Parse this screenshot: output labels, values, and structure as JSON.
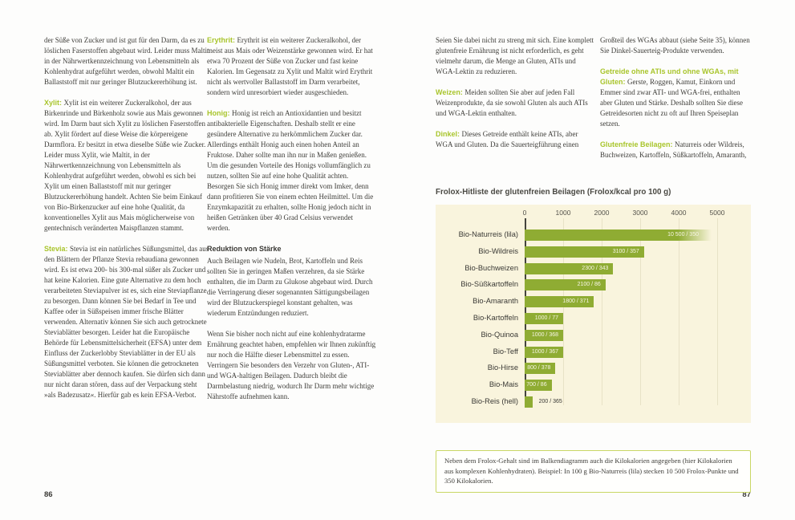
{
  "colors": {
    "accent_green": "#a9c52c",
    "bar_green": "#8fac33",
    "panel_background": "#f9f4dd",
    "note_border": "#c9d765",
    "body_text": "#3e3d39"
  },
  "left_page": {
    "number": "86",
    "col1": [
      {
        "lead": "",
        "text": "der Süße von Zucker und ist gut für den Darm, da es zu löslichen Faserstoffen abgebaut wird. Leider muss Maltit in der Nährwertkennzeichnung von Lebensmitteln als Kohlenhydrat aufgeführt werden, obwohl Maltit ein Ballaststoff mit nur geringer Blutzuckererhöhung ist."
      },
      {
        "lead": "Xylit:",
        "text": "Xylit ist ein weiterer Zuckeralkohol, der aus Birkenrinde und Birkenholz sowie aus Mais gewonnen wird. Im Darm baut sich Xylit zu löslichen Faserstoffen ab. Xylit fördert auf diese Weise die körpereigene Darmflora. Er besitzt in etwa dieselbe Süße wie Zucker. Leider muss Xylit, wie Maltit, in der Nährwertkennzeichnung von Lebensmitteln als Kohlenhydrat aufgeführt werden, obwohl es sich bei Xylit um einen Ballaststoff mit nur geringer Blutzuckererhöhung handelt. Achten Sie beim Einkauf von Bio-Birkenzucker auf eine hohe Qualität, da konventionelles Xylit aus Mais möglicherweise von gentechnisch veränderten Maispflanzen stammt."
      },
      {
        "lead": "Stevia:",
        "text": "Stevia ist ein natürliches Süßungsmittel, das aus den Blättern der Pflanze Stevia rebaudiana gewonnen wird. Es ist etwa 200- bis 300-mal süßer als Zucker und hat keine Kalorien. Eine gute Alternative zu dem hoch verarbeiteten Steviapulver ist es, sich eine Steviapflanze zu besorgen. Dann können Sie bei Bedarf in Tee und Kaffee oder in Süßspeisen immer frische Blätter verwenden. Alternativ können Sie sich auch getrocknete Steviablätter besorgen. Leider hat die Europäische Behörde für Lebensmittelsicherheit (EFSA) unter dem Einfluss der Zuckerlobby Steviablätter in der EU als Süßungsmittel verboten. Sie können die getrockneten Steviablätter aber dennoch kaufen. Sie dürfen sich dann nur nicht daran stören, dass auf der Verpackung steht »als Badezusatz«. Hierfür gab es kein EFSA-Verbot."
      }
    ],
    "col2": [
      {
        "lead": "Erythrit:",
        "text": "Erythrit ist ein weiterer Zuckeralkohol, der meist aus Mais oder Weizenstärke gewonnen wird. Er hat etwa 70 Prozent der Süße von Zucker und fast keine Kalorien. Im Gegensatz zu Xylit und Maltit wird Erythrit nicht als wertvoller Ballaststoff im Darm verarbeitet, sondern wird unresorbiert wieder ausgeschieden."
      },
      {
        "lead": "Honig:",
        "text": "Honig ist reich an Antioxidantien und besitzt antibakterielle Eigenschaften. Deshalb stellt er eine gesündere Alternative zu herkömmlichem Zucker dar. Allerdings enthält Honig auch einen hohen Anteil an Fruktose. Daher sollte man ihn nur in Maßen genießen. Um die gesunden Vorteile des Honigs vollumfänglich zu nutzen, sollten Sie auf eine hohe Qualität achten. Besorgen Sie sich Honig immer direkt vom Imker, denn dann profitieren Sie von einem echten Heilmittel. Um die Enzymkapazität zu erhalten, sollte Honig jedoch nicht in heißen Getränken über 40 Grad Celsius verwendet werden."
      },
      {
        "heading": "Reduktion von Stärke"
      },
      {
        "lead": "",
        "text": "Auch Beilagen wie Nudeln, Brot, Kartoffeln und Reis sollten Sie in geringen Maßen verzehren, da sie Stärke enthalten, die im Darm zu Glukose abgebaut wird. Durch die Verringerung dieser sogenannten Sättigungsbeilagen wird der Blutzuckerspiegel konstant gehalten, was wiederum Entzündungen reduziert."
      },
      {
        "lead": "",
        "text": "Wenn Sie bisher noch nicht auf eine kohlenhydratarme Ernährung geachtet haben, empfehlen wir Ihnen zukünftig nur noch die Hälfte dieser Lebensmittel zu essen. Verringern Sie besonders den Verzehr von Gluten-, ATI- und WGA-haltigen Beilagen. Dadurch bleibt die Darmbelastung niedrig, wodurch Ihr Darm mehr wichtige Nährstoffe aufnehmen kann."
      }
    ]
  },
  "right_page": {
    "number": "87",
    "col1": [
      {
        "lead": "",
        "text": "Seien Sie dabei nicht zu streng mit sich. Eine komplett glutenfreie Ernährung ist nicht erforderlich, es geht vielmehr darum, die Menge an Gluten, ATIs und WGA-Lektin zu reduzieren."
      },
      {
        "lead": "Weizen:",
        "text": "Meiden sollten Sie aber auf jeden Fall Weizenprodukte, da sie sowohl Gluten als auch ATIs und WGA-Lektin enthalten."
      },
      {
        "lead": "Dinkel:",
        "text": "Dieses Getreide enthält keine ATIs, aber WGA und Gluten. Da die Sauerteigführung einen"
      }
    ],
    "col2": [
      {
        "lead": "",
        "text": "Großteil des WGAs abbaut (siehe Seite 35), können Sie Dinkel-Sauerteig-Produkte verwenden."
      },
      {
        "lead": "Getreide ohne ATIs und ohne WGAs, mit Gluten:",
        "text": "Gerste, Roggen, Kamut, Einkorn und Emmer sind zwar ATI- und WGA-frei, enthalten aber Gluten und Stärke. Deshalb sollten Sie diese Getreidesorten nicht zu oft auf Ihren Speiseplan setzen."
      },
      {
        "lead": "Glutenfreie Beilagen:",
        "text": "Naturreis oder Wildreis, Buchweizen, Kartoffeln, Süßkartoffeln, Amaranth,"
      }
    ]
  },
  "chart_data": {
    "type": "bar",
    "orientation": "horizontal",
    "title": "Frolox-Hitliste der glutenfreien Beilagen (Frolox/kcal pro 100 g)",
    "xlabel": "Frolox-Punkte",
    "x_ticks": [
      "0",
      "1000",
      "2000",
      "3000",
      "4000",
      "5000"
    ],
    "x_axis_max_visible": 5000,
    "categories": [
      "Bio-Naturreis (lila)",
      "Bio-Wildreis",
      "Bio-Buchweizen",
      "Bio-Süßkartoffeln",
      "Bio-Amaranth",
      "Bio-Kartoffeln",
      "Bio-Quinoa",
      "Bio-Teff",
      "Bio-Hirse",
      "Bio-Mais",
      "Bio-Reis (hell)"
    ],
    "series": [
      {
        "name": "Frolox",
        "values": [
          10500,
          3100,
          2300,
          2100,
          1800,
          1000,
          1000,
          1000,
          800,
          700,
          200
        ]
      },
      {
        "name": "Kilokalorien",
        "values": [
          350,
          357,
          343,
          86,
          371,
          77,
          368,
          367,
          378,
          86,
          365
        ]
      }
    ],
    "bar_labels": [
      "10 500 / 350",
      "3100 / 357",
      "2300 / 343",
      "2100 / 86",
      "1800 / 371",
      "1000 / 77",
      "1000 / 368",
      "1000 / 367",
      "800 / 378",
      "700 / 86",
      "200 / 365"
    ],
    "grid": true,
    "legend": false,
    "note": "Neben dem Frolox-Gehalt sind im Balkendiagramm auch die Kilokalorien angegeben (hier Kilokalorien aus komplexen Kohlenhydraten). Beispiel: In 100 g Bio-Naturreis (lila) stecken 10 500 Frolox-Punkte und 350 Kilokalorien."
  }
}
